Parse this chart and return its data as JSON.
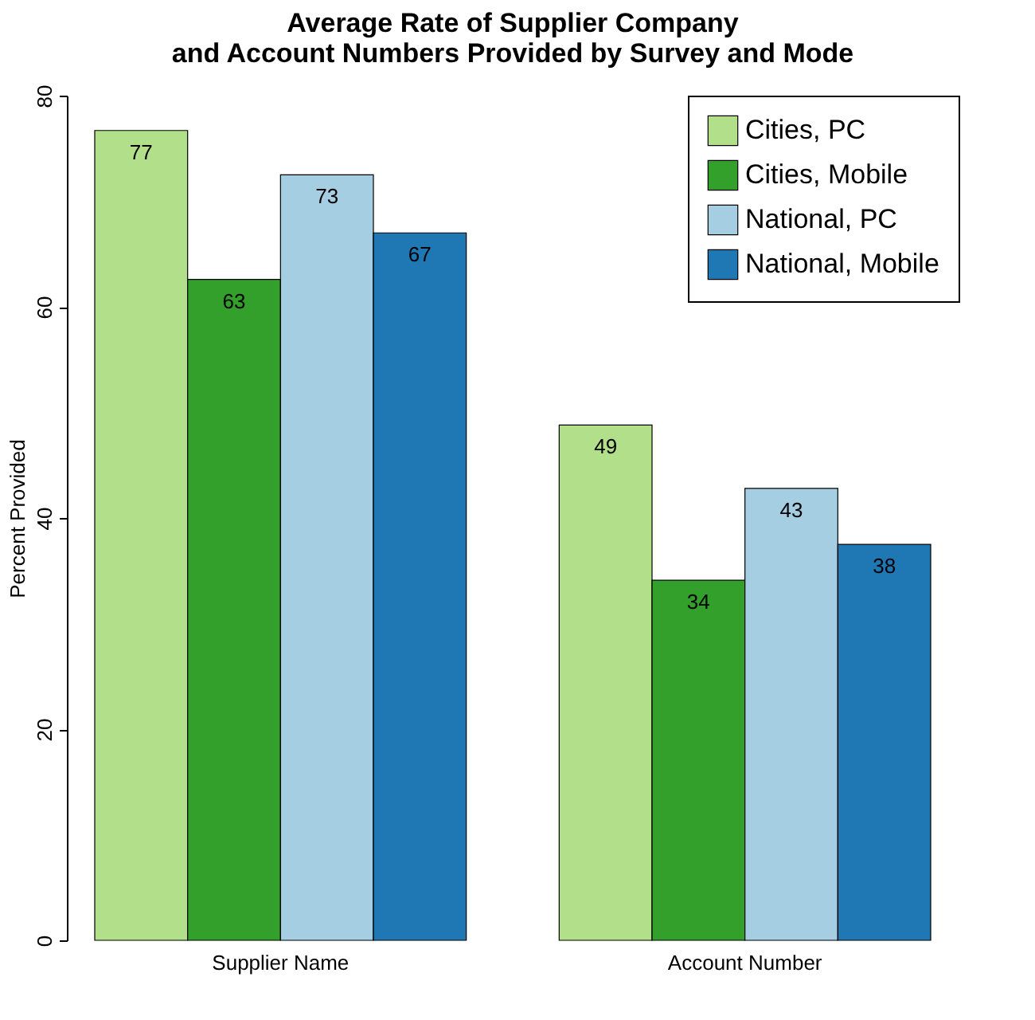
{
  "chart_data": {
    "type": "bar",
    "title": "Average Rate of Supplier Company\nand Account Numbers Provided by Survey and Mode",
    "ylabel": "Percent Provided",
    "categories": [
      "Supplier Name",
      "Account Number"
    ],
    "series": [
      {
        "name": "Cities, PC",
        "color": "#b2df8a",
        "values": [
          76.7,
          48.8
        ],
        "value_labels": [
          "77",
          "49"
        ]
      },
      {
        "name": "Cities, Mobile",
        "color": "#33a02c",
        "values": [
          62.6,
          34.1
        ],
        "value_labels": [
          "63",
          "34"
        ]
      },
      {
        "name": "National, PC",
        "color": "#a6cee3",
        "values": [
          72.5,
          42.8
        ],
        "value_labels": [
          "73",
          "43"
        ]
      },
      {
        "name": "National, Mobile",
        "color": "#1f78b4",
        "values": [
          67.0,
          37.5
        ],
        "value_labels": [
          "67",
          "38"
        ]
      }
    ],
    "ylim": [
      0,
      80
    ],
    "yticks": [
      0,
      20,
      40,
      60,
      80
    ],
    "grid": false,
    "legend": "top right"
  }
}
